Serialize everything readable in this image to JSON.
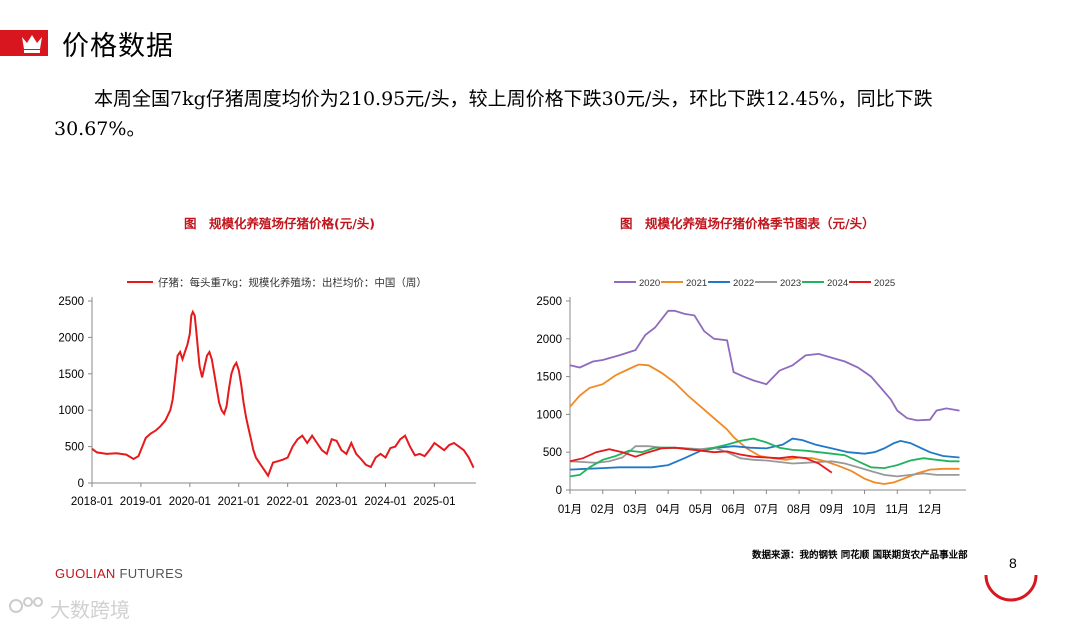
{
  "header": {
    "title": "价格数据",
    "summary": "本周全国7kg仔猪周度均价为210.95元/头，较上周价格下跌30元/头，环比下跌12.45%，同比下跌30.67%。"
  },
  "chart_data": [
    {
      "type": "line",
      "title": "图　规模化养殖场仔猪价格(元/头)",
      "legend": "仔猪：每头重7kg：规模化养殖场：出栏均价：中国（周）",
      "color": "#e41a1c",
      "yticks": [
        "2500",
        "2000",
        "1500",
        "1000",
        "500",
        "0"
      ],
      "ylim": [
        0,
        2500
      ],
      "xticks": [
        "2018-01",
        "2019-01",
        "2020-01",
        "2021-01",
        "2022-01",
        "2023-01",
        "2024-01",
        "2025-01"
      ],
      "xrange": [
        2018.0,
        2025.85
      ],
      "x": [
        2018.0,
        2018.1,
        2018.3,
        2018.5,
        2018.7,
        2018.85,
        2018.95,
        2019.1,
        2019.2,
        2019.3,
        2019.4,
        2019.5,
        2019.6,
        2019.65,
        2019.7,
        2019.75,
        2019.8,
        2019.85,
        2019.9,
        2019.95,
        2020.0,
        2020.03,
        2020.06,
        2020.1,
        2020.13,
        2020.17,
        2020.2,
        2020.25,
        2020.3,
        2020.35,
        2020.4,
        2020.45,
        2020.5,
        2020.55,
        2020.6,
        2020.65,
        2020.7,
        2020.75,
        2020.8,
        2020.85,
        2020.9,
        2020.95,
        2021.0,
        2021.05,
        2021.1,
        2021.15,
        2021.2,
        2021.25,
        2021.3,
        2021.35,
        2021.4,
        2021.5,
        2021.6,
        2021.7,
        2021.8,
        2021.9,
        2022.0,
        2022.1,
        2022.2,
        2022.3,
        2022.4,
        2022.5,
        2022.6,
        2022.7,
        2022.8,
        2022.9,
        2023.0,
        2023.1,
        2023.2,
        2023.3,
        2023.4,
        2023.5,
        2023.6,
        2023.7,
        2023.8,
        2023.9,
        2024.0,
        2024.1,
        2024.2,
        2024.3,
        2024.4,
        2024.5,
        2024.6,
        2024.7,
        2024.8,
        2024.9,
        2025.0,
        2025.1,
        2025.2,
        2025.3,
        2025.4,
        2025.5,
        2025.6,
        2025.7,
        2025.8
      ],
      "values": [
        470,
        420,
        400,
        410,
        390,
        330,
        370,
        620,
        680,
        720,
        780,
        860,
        1000,
        1150,
        1450,
        1750,
        1800,
        1700,
        1800,
        1900,
        2050,
        2300,
        2350,
        2300,
        2100,
        1800,
        1600,
        1450,
        1600,
        1750,
        1800,
        1700,
        1500,
        1300,
        1100,
        1000,
        950,
        1050,
        1300,
        1500,
        1600,
        1650,
        1550,
        1350,
        1100,
        900,
        750,
        600,
        450,
        350,
        300,
        200,
        100,
        280,
        300,
        320,
        350,
        500,
        600,
        650,
        550,
        650,
        550,
        450,
        400,
        600,
        580,
        450,
        400,
        550,
        400,
        330,
        250,
        220,
        350,
        400,
        350,
        480,
        500,
        600,
        650,
        500,
        380,
        400,
        370,
        450,
        550,
        500,
        450,
        520,
        550,
        500,
        450,
        350,
        210
      ]
    },
    {
      "type": "line",
      "title": "图　规模化养殖场仔猪价格季节图表（元/头）",
      "yticks": [
        "2500",
        "2000",
        "1500",
        "1000",
        "500",
        "0"
      ],
      "ylim": [
        0,
        2500
      ],
      "xticks": [
        "01月",
        "02月",
        "03月",
        "04月",
        "05月",
        "06月",
        "07月",
        "08月",
        "09月",
        "10月",
        "11月",
        "12月"
      ],
      "xrange": [
        1,
        13.1
      ],
      "series": [
        {
          "name": "2020",
          "color": "#8e6bbf",
          "x": [
            1,
            1.3,
            1.7,
            2,
            2.5,
            3,
            3.3,
            3.6,
            4,
            4.2,
            4.5,
            4.8,
            5.1,
            5.4,
            5.8,
            6,
            6.3,
            6.6,
            7,
            7.4,
            7.8,
            8.2,
            8.6,
            9,
            9.4,
            9.8,
            10.2,
            10.5,
            10.8,
            11,
            11.3,
            11.6,
            12,
            12.2,
            12.5,
            12.9
          ],
          "values": [
            1650,
            1620,
            1700,
            1720,
            1780,
            1850,
            2050,
            2150,
            2370,
            2370,
            2330,
            2310,
            2100,
            2000,
            1980,
            1560,
            1500,
            1450,
            1400,
            1580,
            1650,
            1780,
            1800,
            1750,
            1700,
            1620,
            1500,
            1350,
            1200,
            1050,
            950,
            920,
            930,
            1050,
            1080,
            1050
          ]
        },
        {
          "name": "2021",
          "color": "#f08a24",
          "x": [
            1,
            1.3,
            1.6,
            2,
            2.4,
            2.8,
            3.1,
            3.4,
            3.8,
            4.2,
            4.6,
            5,
            5.4,
            5.8,
            6,
            6.4,
            6.8,
            7.2,
            7.6,
            8,
            8.4,
            8.8,
            9.2,
            9.6,
            10,
            10.3,
            10.6,
            10.9,
            11.2,
            11.6,
            12,
            12.4,
            12.9
          ],
          "values": [
            1100,
            1250,
            1350,
            1400,
            1520,
            1600,
            1660,
            1650,
            1550,
            1420,
            1250,
            1100,
            950,
            800,
            700,
            550,
            450,
            420,
            400,
            430,
            420,
            380,
            320,
            250,
            150,
            100,
            80,
            100,
            150,
            220,
            270,
            280,
            280
          ]
        },
        {
          "name": "2022",
          "color": "#1f78c8",
          "x": [
            1,
            1.5,
            2,
            2.5,
            3,
            3.5,
            4,
            4.5,
            5,
            5.5,
            6,
            6.5,
            7,
            7.5,
            7.8,
            8.1,
            8.5,
            9,
            9.5,
            10,
            10.3,
            10.6,
            10.9,
            11.1,
            11.4,
            11.7,
            12,
            12.4,
            12.9
          ],
          "values": [
            270,
            280,
            290,
            300,
            300,
            300,
            330,
            420,
            520,
            560,
            580,
            560,
            550,
            600,
            680,
            660,
            600,
            550,
            500,
            480,
            500,
            550,
            620,
            650,
            620,
            560,
            500,
            450,
            430
          ]
        },
        {
          "name": "2023",
          "color": "#999999",
          "x": [
            1,
            1.4,
            1.8,
            2.2,
            2.6,
            3,
            3.4,
            3.8,
            4.2,
            4.6,
            5,
            5.4,
            5.8,
            6.2,
            6.6,
            7,
            7.4,
            7.8,
            8.2,
            8.6,
            9,
            9.4,
            9.8,
            10.2,
            10.6,
            11,
            11.4,
            11.8,
            12.2,
            12.6,
            12.9
          ],
          "values": [
            380,
            370,
            360,
            380,
            430,
            580,
            580,
            560,
            560,
            550,
            540,
            560,
            500,
            420,
            400,
            390,
            370,
            350,
            360,
            370,
            380,
            350,
            300,
            250,
            200,
            180,
            200,
            220,
            200,
            200,
            200
          ]
        },
        {
          "name": "2024",
          "color": "#22b35e",
          "x": [
            1,
            1.3,
            1.6,
            2,
            2.4,
            2.8,
            3.2,
            3.6,
            4,
            4.5,
            5,
            5.4,
            5.8,
            6.2,
            6.6,
            7,
            7.4,
            7.8,
            8.2,
            8.6,
            9,
            9.4,
            9.8,
            10.2,
            10.6,
            11,
            11.4,
            11.8,
            12.2,
            12.6,
            12.9
          ],
          "values": [
            180,
            200,
            300,
            400,
            450,
            520,
            500,
            560,
            560,
            550,
            520,
            560,
            600,
            650,
            680,
            630,
            560,
            530,
            520,
            500,
            480,
            460,
            380,
            300,
            290,
            330,
            390,
            420,
            400,
            380,
            380
          ]
        },
        {
          "name": "2025",
          "color": "#e41a1c",
          "x": [
            1,
            1.4,
            1.8,
            2.2,
            2.6,
            3,
            3.4,
            3.8,
            4.2,
            4.6,
            5,
            5.4,
            5.8,
            6.2,
            6.6,
            7,
            7.4,
            7.8,
            8.2,
            8.6,
            9
          ],
          "values": [
            380,
            420,
            500,
            540,
            500,
            440,
            500,
            550,
            560,
            540,
            520,
            500,
            510,
            470,
            440,
            430,
            420,
            440,
            420,
            350,
            230
          ]
        }
      ]
    }
  ],
  "footer": {
    "source": "数据来源：我的钢铁  同花顺  国联期货农产品事业部",
    "brand_a": "GUOLIAN",
    "brand_b": "FUTURES",
    "page_number": "8",
    "watermark": "大数跨境"
  }
}
